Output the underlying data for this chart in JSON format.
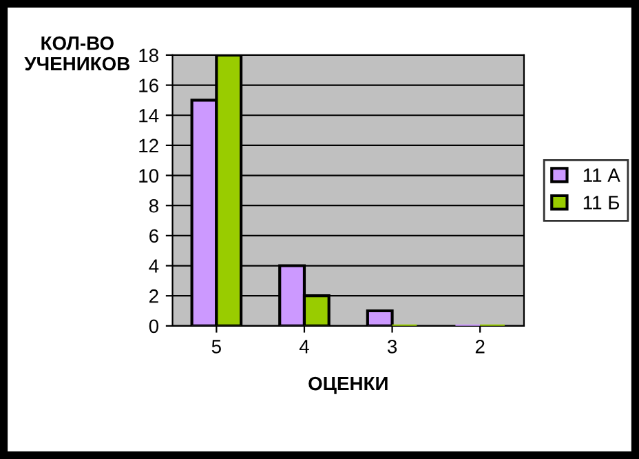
{
  "chart_data": {
    "type": "bar",
    "ylabel": "КОЛ-ВО\nУЧЕНИКОВ",
    "xlabel": "ОЦЕНКИ",
    "categories": [
      "5",
      "4",
      "3",
      "2"
    ],
    "series": [
      {
        "name": "11 А",
        "color": "#cc99ff",
        "values": [
          15,
          4,
          1,
          0
        ]
      },
      {
        "name": "11 Б",
        "color": "#99cc00",
        "values": [
          18,
          2,
          0,
          0
        ]
      }
    ],
    "ylim": [
      0,
      18
    ],
    "yticks": [
      0,
      2,
      4,
      6,
      8,
      10,
      12,
      14,
      16,
      18
    ],
    "grid": "y",
    "legend": "right"
  }
}
